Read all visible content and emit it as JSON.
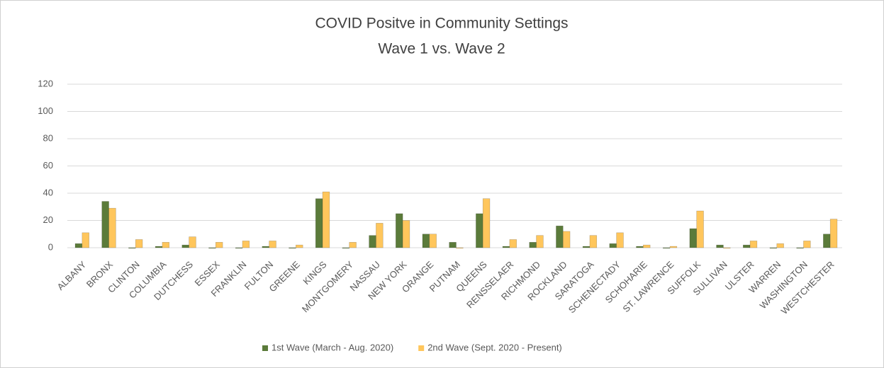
{
  "chart_data": {
    "type": "bar",
    "title": "COVID Positve in Community Settings",
    "subtitle": "Wave 1 vs. Wave 2",
    "categories": [
      "ALBANY",
      "BRONX",
      "CLINTON",
      "COLUMBIA",
      "DUTCHESS",
      "ESSEX",
      "FRANKLIN",
      "FULTON",
      "GREENE",
      "KINGS",
      "MONTGOMERY",
      "NASSAU",
      "NEW YORK",
      "ORANGE",
      "PUTNAM",
      "QUEENS",
      "RENSSELAER",
      "RICHMOND",
      "ROCKLAND",
      "SARATOGA",
      "SCHENECTADY",
      "SCHOHARIE",
      "ST. LAWRENCE",
      "SUFFOLK",
      "SULLIVAN",
      "ULSTER",
      "WARREN",
      "WASHINGTON",
      "WESTCHESTER"
    ],
    "series": [
      {
        "name": "1st Wave (March - Aug. 2020)",
        "color": "#5b7b3a",
        "values": [
          3,
          34,
          0,
          1,
          2,
          0,
          0,
          1,
          0,
          36,
          0,
          9,
          25,
          10,
          4,
          25,
          1,
          4,
          16,
          1,
          3,
          1,
          0,
          14,
          2,
          2,
          0,
          0,
          10
        ]
      },
      {
        "name": "2nd Wave (Sept. 2020 - Present)",
        "color": "#ffc65c",
        "values": [
          11,
          29,
          6,
          4,
          8,
          4,
          5,
          5,
          2,
          41,
          4,
          18,
          20,
          10,
          0,
          36,
          6,
          9,
          12,
          9,
          11,
          2,
          1,
          27,
          0,
          5,
          3,
          5,
          21
        ]
      }
    ],
    "ylim": [
      0,
      120
    ],
    "yticks": [
      0,
      20,
      40,
      60,
      80,
      100,
      120
    ],
    "grid": true,
    "legend": "bottom"
  }
}
